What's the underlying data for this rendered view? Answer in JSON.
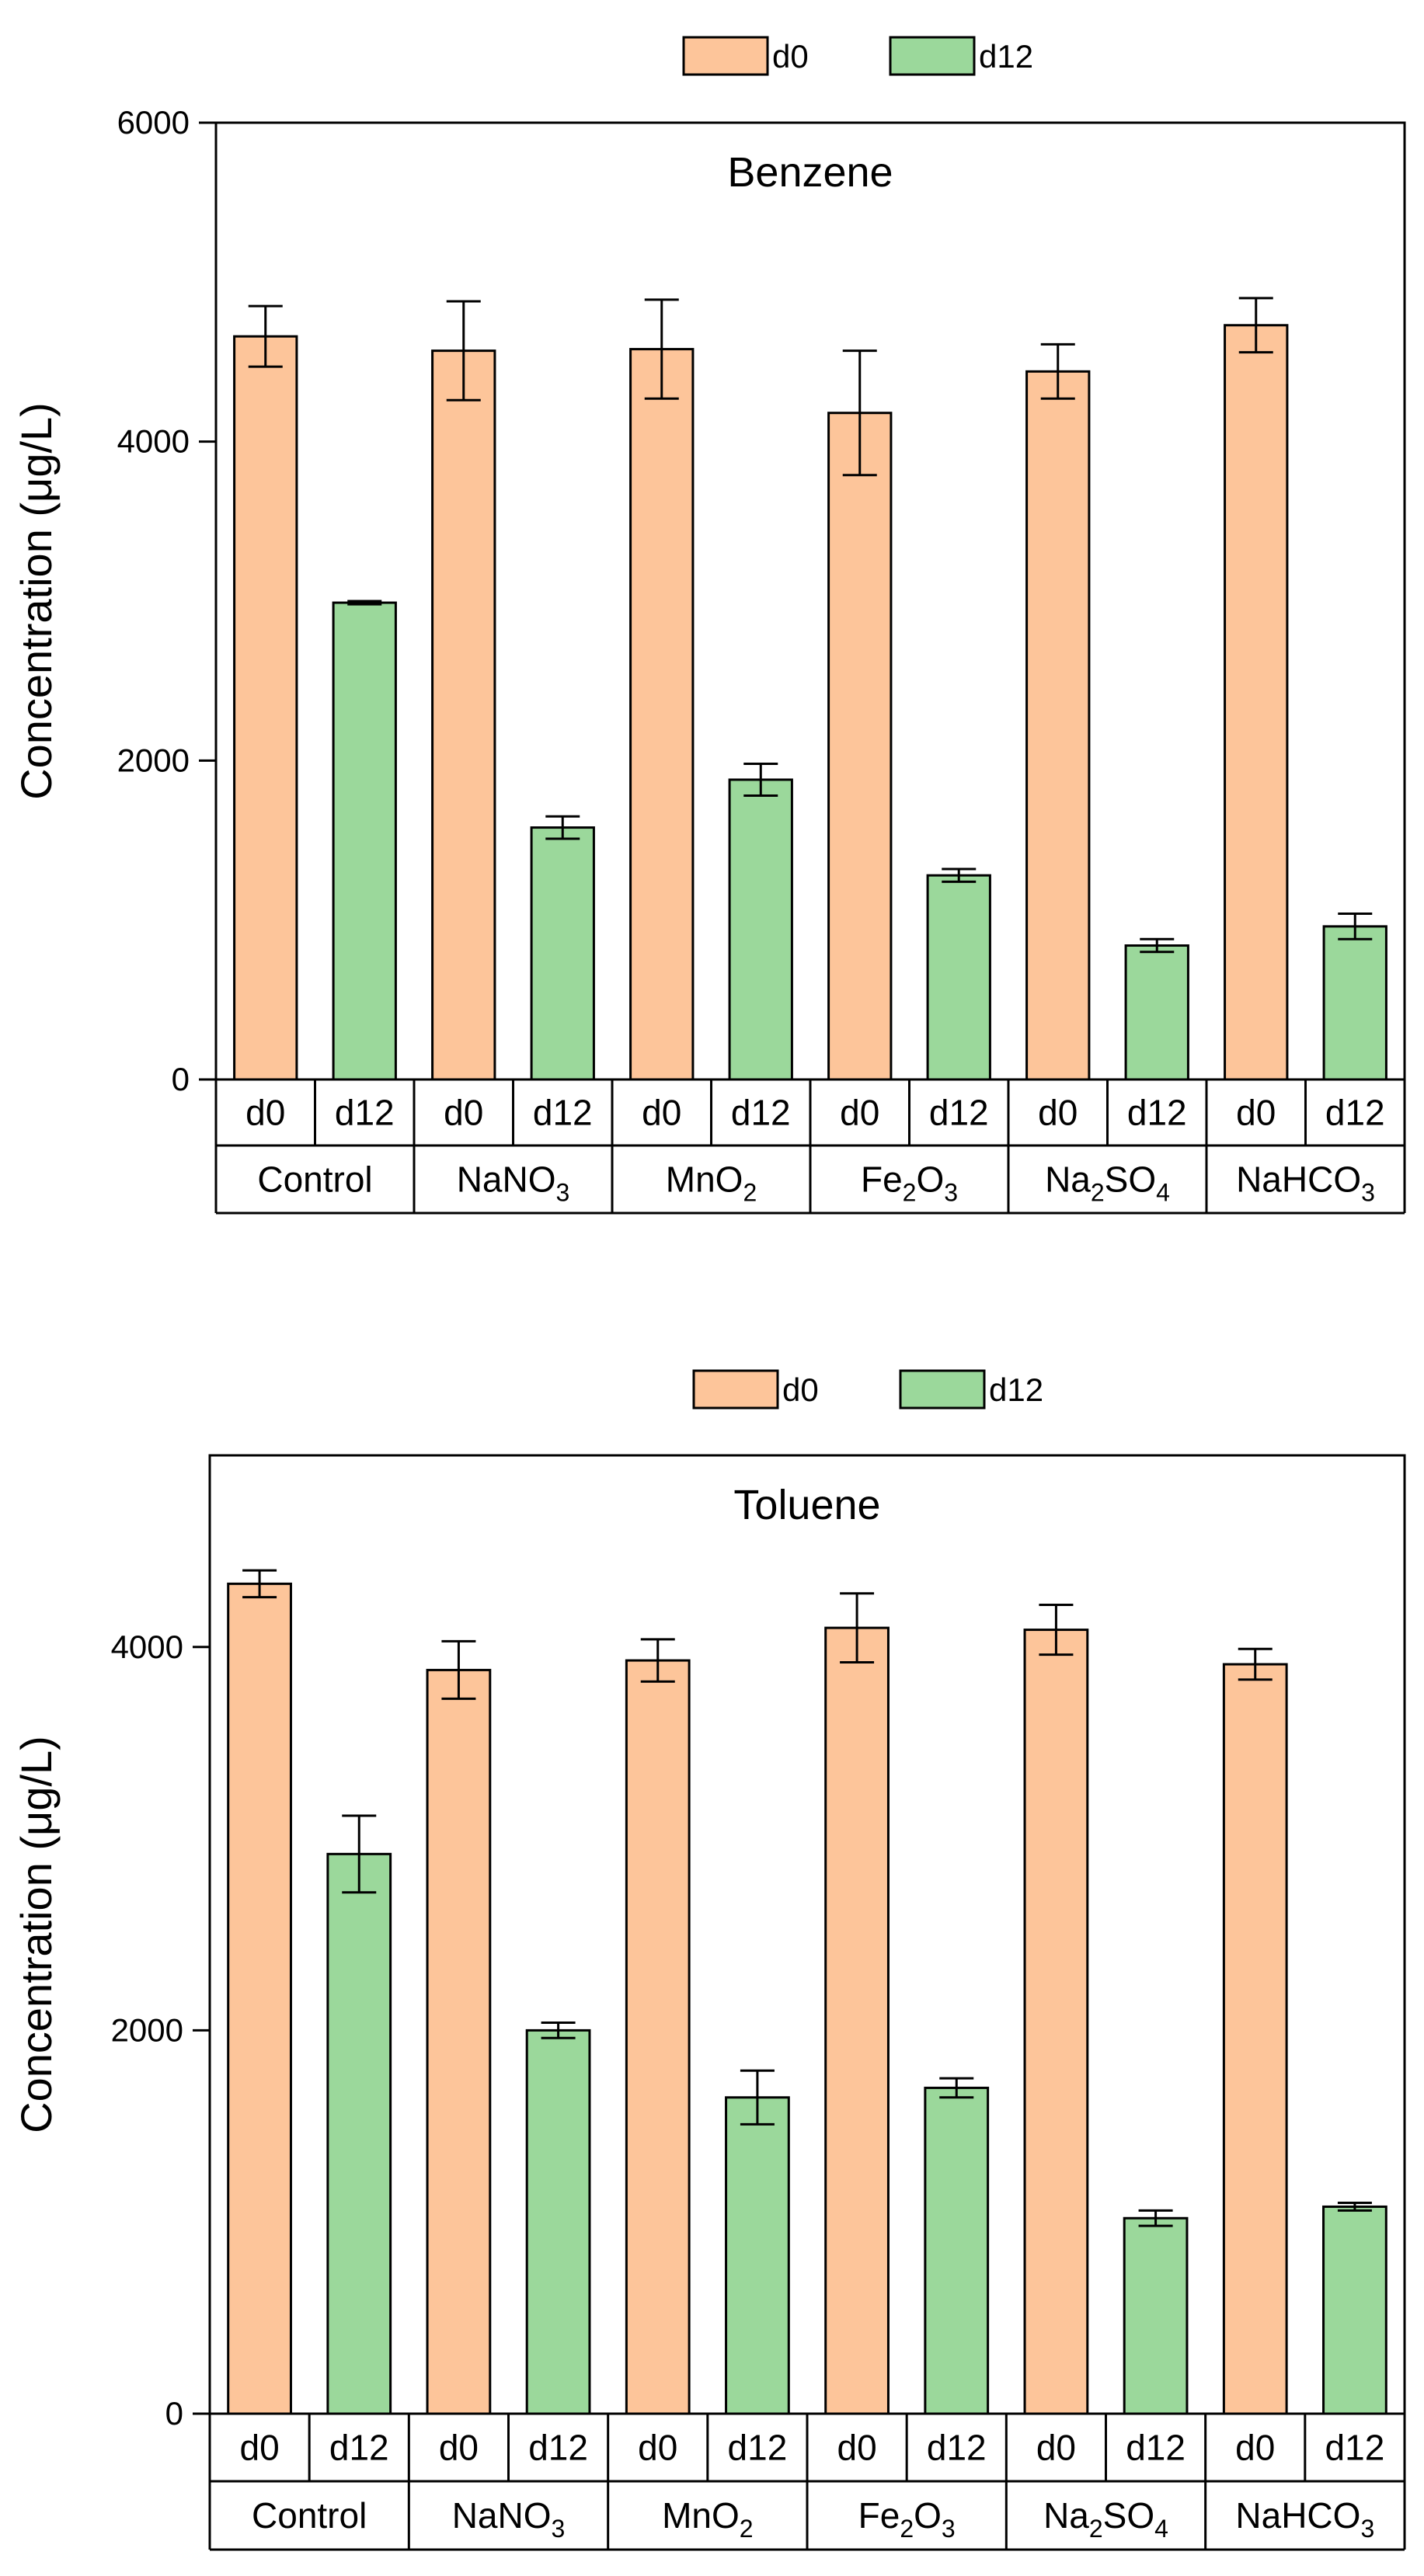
{
  "colors": {
    "d0": "#FDC59A",
    "d12": "#9BD89B",
    "axis": "#000000"
  },
  "chart_data": [
    {
      "type": "bar",
      "title": "Benzene",
      "ylabel": "Concentration (μg/L)",
      "ylim": [
        0,
        6000
      ],
      "yticks": [
        0,
        2000,
        4000,
        6000
      ],
      "legend": {
        "placement": "top-center",
        "entries": [
          "d0",
          "d12"
        ]
      },
      "groups": [
        {
          "base": "Control",
          "sub": "",
          "tail": ""
        },
        {
          "base": "NaNO",
          "sub": "3",
          "tail": ""
        },
        {
          "base": "MnO",
          "sub": "2",
          "tail": ""
        },
        {
          "base": "Fe",
          "sub": "2",
          "tail": "O",
          "sub2": "3"
        },
        {
          "base": "Na",
          "sub": "2",
          "tail": "SO",
          "sub2": "4"
        },
        {
          "base": "NaHCO",
          "sub": "3",
          "tail": ""
        }
      ],
      "series": [
        {
          "name": "d0",
          "values": [
            4660,
            4570,
            4580,
            4180,
            4440,
            4730
          ],
          "errors": [
            190,
            310,
            310,
            390,
            170,
            170
          ]
        },
        {
          "name": "d12",
          "values": [
            2990,
            1580,
            1880,
            1280,
            840,
            960
          ],
          "errors": [
            10,
            70,
            100,
            40,
            40,
            80
          ]
        }
      ]
    },
    {
      "type": "bar",
      "title": "Toluene",
      "ylabel": "Concentration (μg/L)",
      "ylim": [
        0,
        5000
      ],
      "yticks": [
        0,
        2000,
        4000
      ],
      "legend": {
        "placement": "top-center",
        "entries": [
          "d0",
          "d12"
        ]
      },
      "groups": [
        {
          "base": "Control",
          "sub": "",
          "tail": ""
        },
        {
          "base": "NaNO",
          "sub": "3",
          "tail": ""
        },
        {
          "base": "MnO",
          "sub": "2",
          "tail": ""
        },
        {
          "base": "Fe",
          "sub": "2",
          "tail": "O",
          "sub2": "3"
        },
        {
          "base": "Na",
          "sub": "2",
          "tail": "SO",
          "sub2": "4"
        },
        {
          "base": "NaHCO",
          "sub": "3",
          "tail": ""
        }
      ],
      "series": [
        {
          "name": "d0",
          "values": [
            4330,
            3880,
            3930,
            4100,
            4090,
            3910
          ],
          "errors": [
            70,
            150,
            110,
            180,
            130,
            80
          ]
        },
        {
          "name": "d12",
          "values": [
            2920,
            2000,
            1650,
            1700,
            1020,
            1080
          ],
          "errors": [
            200,
            40,
            140,
            50,
            40,
            20
          ]
        }
      ]
    }
  ]
}
